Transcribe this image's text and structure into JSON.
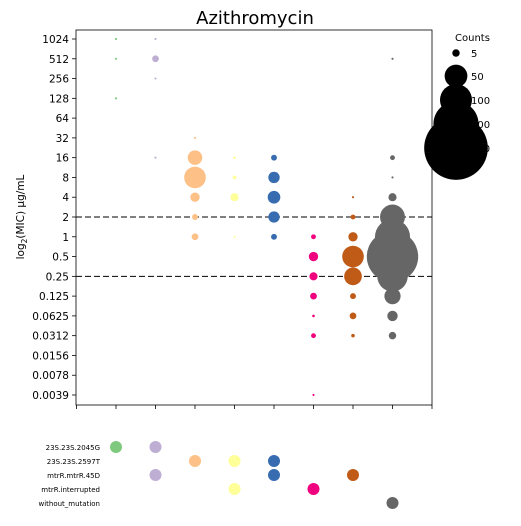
{
  "chart_data": {
    "type": "scatter",
    "title": "Azithromycin",
    "ylabel": "log2(MIC) μg/mL",
    "ylabel_base": "log",
    "ylabel_sub": "2",
    "ylabel_rest": "(MIC) μg/mL",
    "y_scale": "log2",
    "y_ticks": [
      "0.0039",
      "0.0078",
      "0.0156",
      "0.0312",
      "0.0625",
      "0.125",
      "0.25",
      "0.5",
      "1",
      "2",
      "4",
      "8",
      "16",
      "32",
      "64",
      "128",
      "256",
      "512",
      "1024"
    ],
    "thresholds": [
      "0.25",
      "2"
    ],
    "threshold_style": "dashed",
    "legend": {
      "title": "Counts",
      "placement": "outside-right",
      "entries": [
        {
          "label": "5",
          "count": 5
        },
        {
          "label": "50",
          "count": 50
        },
        {
          "label": "100",
          "count": 100
        },
        {
          "label": "200",
          "count": 200
        },
        {
          "label": "400",
          "count": 400
        }
      ]
    },
    "mutations": [
      "23S.23S.2045G",
      "23S.23S.2597T",
      "mtrR.mtrR.45D",
      "mtrR.interrupted",
      "without_mutation"
    ],
    "groups": [
      {
        "color": "#7fc97f",
        "mutations": [
          1,
          0,
          0,
          0,
          0
        ],
        "points": [
          {
            "mic": "1024",
            "count": 0.3
          },
          {
            "mic": "512",
            "count": 0.3
          },
          {
            "mic": "128",
            "count": 0.3
          }
        ]
      },
      {
        "color": "#beaed4",
        "mutations": [
          1,
          0,
          1,
          0,
          0
        ],
        "points": [
          {
            "mic": "1024",
            "count": 0.3
          },
          {
            "mic": "512",
            "count": 4
          },
          {
            "mic": "256",
            "count": 0.3
          },
          {
            "mic": "16",
            "count": 0.3
          }
        ]
      },
      {
        "color": "#fdc086",
        "mutations": [
          0,
          1,
          0,
          0,
          0
        ],
        "points": [
          {
            "mic": "32",
            "count": 0.3
          },
          {
            "mic": "16",
            "count": 20
          },
          {
            "mic": "8",
            "count": 45
          },
          {
            "mic": "4",
            "count": 8
          },
          {
            "mic": "2",
            "count": 3
          },
          {
            "mic": "1",
            "count": 4
          }
        ]
      },
      {
        "color": "#ffff99",
        "mutations": [
          0,
          1,
          0,
          1,
          0
        ],
        "points": [
          {
            "mic": "16",
            "count": 0.5
          },
          {
            "mic": "8",
            "count": 1
          },
          {
            "mic": "4",
            "count": 6
          },
          {
            "mic": "1",
            "count": 0.3
          }
        ]
      },
      {
        "color": "#386cb0",
        "mutations": [
          0,
          1,
          1,
          0,
          0
        ],
        "points": [
          {
            "mic": "16",
            "count": 3
          },
          {
            "mic": "8",
            "count": 12
          },
          {
            "mic": "4",
            "count": 15
          },
          {
            "mic": "2",
            "count": 12
          },
          {
            "mic": "1",
            "count": 3
          }
        ]
      },
      {
        "color": "#f0027f",
        "mutations": [
          0,
          0,
          0,
          1,
          0
        ],
        "points": [
          {
            "mic": "1",
            "count": 2
          },
          {
            "mic": "0.5",
            "count": 8
          },
          {
            "mic": "0.25",
            "count": 6
          },
          {
            "mic": "0.125",
            "count": 4
          },
          {
            "mic": "0.0625",
            "count": 0.5
          },
          {
            "mic": "0.0312",
            "count": 2
          },
          {
            "mic": "0.0039",
            "count": 0.3
          }
        ]
      },
      {
        "color": "#bf5b17",
        "mutations": [
          0,
          0,
          1,
          0,
          0
        ],
        "points": [
          {
            "mic": "4",
            "count": 0.3
          },
          {
            "mic": "2",
            "count": 2
          },
          {
            "mic": "1",
            "count": 8
          },
          {
            "mic": "0.5",
            "count": 45
          },
          {
            "mic": "0.25",
            "count": 30
          },
          {
            "mic": "0.125",
            "count": 3
          },
          {
            "mic": "0.0625",
            "count": 4
          },
          {
            "mic": "0.0312",
            "count": 1
          }
        ]
      },
      {
        "color": "#666666",
        "mutations": [
          0,
          0,
          0,
          0,
          1
        ],
        "points": [
          {
            "mic": "512",
            "count": 0.3
          },
          {
            "mic": "16",
            "count": 2
          },
          {
            "mic": "8",
            "count": 0.3
          },
          {
            "mic": "4",
            "count": 6
          },
          {
            "mic": "2",
            "count": 60
          },
          {
            "mic": "1",
            "count": 120
          },
          {
            "mic": "0.5",
            "count": 260
          },
          {
            "mic": "0.25",
            "count": 90
          },
          {
            "mic": "0.125",
            "count": 25
          },
          {
            "mic": "0.0625",
            "count": 10
          },
          {
            "mic": "0.0312",
            "count": 5
          }
        ]
      }
    ]
  }
}
